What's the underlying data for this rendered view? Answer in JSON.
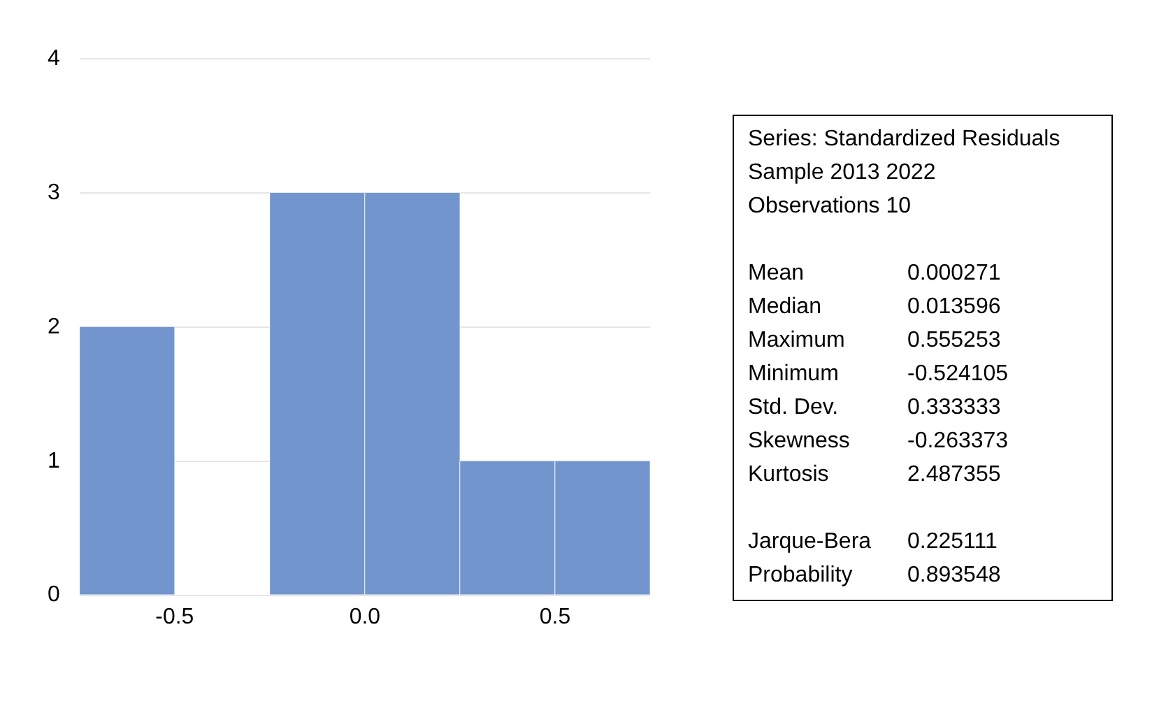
{
  "chart_data": {
    "type": "histogram",
    "bins": [
      -0.75,
      -0.5,
      -0.25,
      0,
      0.25,
      0.5,
      0.75
    ],
    "values": [
      2,
      0,
      3,
      3,
      1,
      1
    ],
    "color": "#7295cd",
    "xlim": [
      -0.75,
      0.75
    ],
    "xticks": [
      {
        "value": -0.5,
        "label": "-0.5"
      },
      {
        "value": 0,
        "label": "0.0"
      },
      {
        "value": 0.5,
        "label": "0.5"
      }
    ],
    "ylim": [
      0,
      4
    ],
    "yticks": [
      0,
      1,
      2,
      3,
      4
    ],
    "grid": "y",
    "legend": false,
    "annotations": [
      "Series: Standardized Residuals",
      "Sample 2013 2022",
      "Observations 10",
      "Mean 0.000271",
      "Median 0.013596",
      "Maximum 0.555253",
      "Minimum -0.524105",
      "Std. Dev. 0.333333",
      "Skewness -0.263373",
      "Kurtosis 2.487355",
      "Jarque-Bera 0.225111",
      "Probability 0.893548"
    ]
  }
}
